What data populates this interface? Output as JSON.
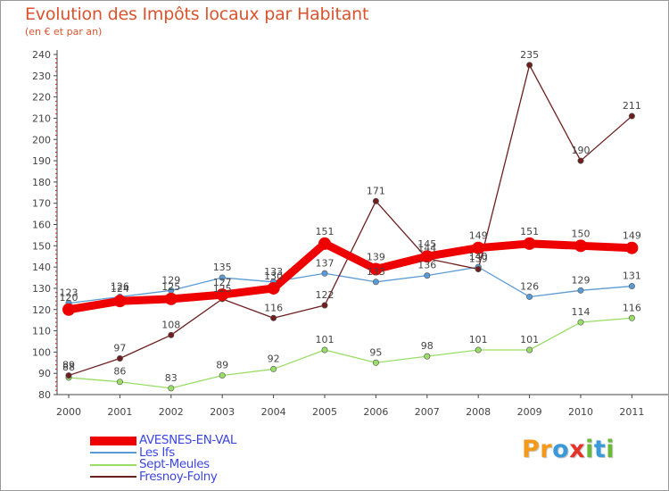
{
  "header": {
    "title": "Evolution des Impôts locaux par Habitant",
    "subtitle": "(en € et par an)"
  },
  "logo": {
    "text": "Proxiti",
    "letters": [
      {
        "ch": "P",
        "color": "#f39a1a"
      },
      {
        "ch": "r",
        "color": "#f39a1a"
      },
      {
        "ch": "o",
        "color": "#3a9ad9"
      },
      {
        "ch": "x",
        "color": "#e4342a"
      },
      {
        "ch": "i",
        "color": "#6ab93a"
      },
      {
        "ch": "t",
        "color": "#3a9ad9"
      },
      {
        "ch": "i",
        "color": "#6ab93a"
      }
    ]
  },
  "chart_data": {
    "type": "line",
    "title": "Evolution des Impôts locaux par Habitant",
    "subtitle": "(en € et par an)",
    "xlabel": "",
    "ylabel": "",
    "x": [
      "2000",
      "2001",
      "2002",
      "2003",
      "2004",
      "2005",
      "2006",
      "2007",
      "2008",
      "2009",
      "2010",
      "2011"
    ],
    "ylim": [
      80,
      240
    ],
    "yticks": [
      80,
      90,
      100,
      110,
      120,
      130,
      140,
      150,
      160,
      170,
      180,
      190,
      200,
      210,
      220,
      230,
      240
    ],
    "grid": false,
    "legend_position": "bottom-left",
    "series": [
      {
        "name": "Les Ifs",
        "color": "#5b9bd5",
        "values": [
          123,
          126,
          129,
          135,
          133,
          137,
          133,
          136,
          140,
          126,
          129,
          131
        ]
      },
      {
        "name": "Sept-Meules",
        "color": "#99dd66",
        "values": [
          88,
          86,
          83,
          89,
          92,
          101,
          95,
          98,
          101,
          101,
          114,
          116
        ]
      },
      {
        "name": "Fresnoy-Folny",
        "color": "#6d1f1f",
        "values": [
          89,
          97,
          108,
          125,
          116,
          122,
          171,
          144,
          139,
          235,
          190,
          211
        ]
      },
      {
        "name": "AVESNES-EN-VAL",
        "color": "#ee0000",
        "values": [
          120,
          124,
          125,
          127,
          130,
          151,
          139,
          145,
          149,
          151,
          150,
          149
        ]
      }
    ],
    "legend_order": [
      "AVESNES-EN-VAL",
      "Les Ifs",
      "Sept-Meules",
      "Fresnoy-Folny"
    ]
  }
}
